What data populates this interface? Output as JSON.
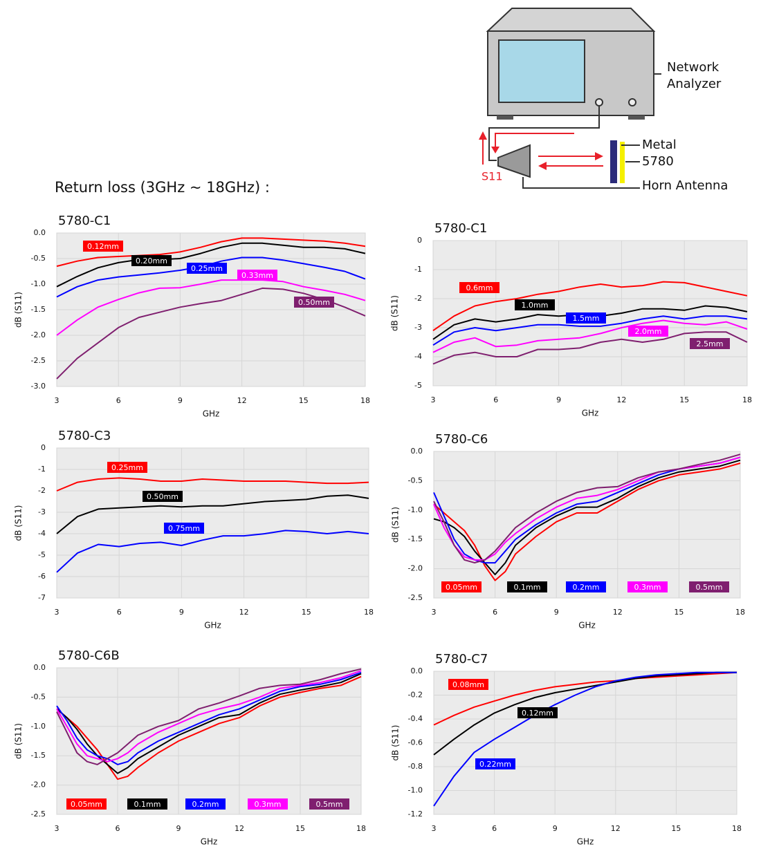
{
  "heading": "Return loss (3GHz ~ 18GHz) :",
  "diagram": {
    "analyzer": [
      "Network",
      "Analyzer"
    ],
    "metal": "Metal",
    "sample": "5780",
    "antenna": "Horn Antenna",
    "signal": "S11"
  },
  "chart_data": [
    {
      "type": "line",
      "title": "5780-C1",
      "xlabel": "GHz",
      "ylabel": "dB (S11)",
      "x": [
        3,
        4,
        5,
        6,
        7,
        8,
        9,
        10,
        11,
        12,
        13,
        14,
        15,
        16,
        17,
        18
      ],
      "xlim": [
        3,
        18
      ],
      "xticks": [
        3,
        6,
        9,
        12,
        15,
        18
      ],
      "ylim": [
        -3,
        0
      ],
      "yticks": [
        {
          "value": 0,
          "label": "0.0"
        },
        -0.5,
        {
          "value": -1,
          "label": "-1.0"
        },
        -1.5,
        {
          "value": -2,
          "label": "-2.0"
        },
        -2.5,
        {
          "value": -3,
          "label": "-3.0"
        }
      ],
      "grid": true,
      "series": [
        {
          "name": "0.12mm",
          "color": "#ff0000",
          "values": [
            -0.65,
            -0.55,
            -0.48,
            -0.46,
            -0.44,
            -0.42,
            -0.37,
            -0.28,
            -0.17,
            -0.1,
            -0.1,
            -0.12,
            -0.14,
            -0.16,
            -0.2,
            -0.26
          ]
        },
        {
          "name": "0.20mm",
          "color": "#000000",
          "values": [
            -1.05,
            -0.85,
            -0.68,
            -0.58,
            -0.52,
            -0.52,
            -0.5,
            -0.4,
            -0.28,
            -0.2,
            -0.2,
            -0.24,
            -0.28,
            -0.28,
            -0.31,
            -0.4
          ]
        },
        {
          "name": "0.25mm",
          "color": "#0000ff",
          "values": [
            -1.25,
            -1.05,
            -0.92,
            -0.86,
            -0.82,
            -0.78,
            -0.73,
            -0.66,
            -0.55,
            -0.48,
            -0.48,
            -0.53,
            -0.6,
            -0.67,
            -0.75,
            -0.9
          ]
        },
        {
          "name": "0.33mm",
          "color": "#ff00ff",
          "values": [
            -2.0,
            -1.7,
            -1.45,
            -1.3,
            -1.17,
            -1.08,
            -1.07,
            -1.0,
            -0.92,
            -0.92,
            -0.92,
            -0.95,
            -1.05,
            -1.12,
            -1.2,
            -1.32
          ]
        },
        {
          "name": "0.50mm",
          "color": "#7f1f6f",
          "values": [
            -2.85,
            -2.45,
            -2.15,
            -1.85,
            -1.65,
            -1.55,
            -1.45,
            -1.38,
            -1.32,
            -1.2,
            -1.08,
            -1.1,
            -1.18,
            -1.3,
            -1.45,
            -1.62
          ]
        }
      ]
    },
    {
      "type": "line",
      "title": "5780-C1",
      "xlabel": "GHz",
      "ylabel": "dB (S11)",
      "x": [
        3,
        4,
        5,
        6,
        7,
        8,
        9,
        10,
        11,
        12,
        13,
        14,
        15,
        16,
        17,
        18
      ],
      "xlim": [
        3,
        18
      ],
      "xticks": [
        3,
        6,
        9,
        12,
        15,
        18
      ],
      "ylim": [
        -5,
        0
      ],
      "yticks": [
        0,
        -1,
        -2,
        -3,
        -4,
        -5
      ],
      "grid": true,
      "series": [
        {
          "name": "0.6mm",
          "color": "#ff0000",
          "values": [
            -3.1,
            -2.6,
            -2.25,
            -2.1,
            -2.0,
            -1.85,
            -1.75,
            -1.6,
            -1.5,
            -1.6,
            -1.55,
            -1.42,
            -1.45,
            -1.6,
            -1.75,
            -1.9
          ]
        },
        {
          "name": "1.0mm",
          "color": "#000000",
          "values": [
            -3.4,
            -2.9,
            -2.7,
            -2.8,
            -2.7,
            -2.55,
            -2.6,
            -2.55,
            -2.6,
            -2.5,
            -2.35,
            -2.35,
            -2.4,
            -2.25,
            -2.3,
            -2.45
          ]
        },
        {
          "name": "1.5mm",
          "color": "#0000ff",
          "values": [
            -3.6,
            -3.15,
            -3.0,
            -3.1,
            -3.0,
            -2.9,
            -2.9,
            -2.95,
            -2.95,
            -2.85,
            -2.7,
            -2.6,
            -2.7,
            -2.6,
            -2.6,
            -2.7
          ]
        },
        {
          "name": "2.0mm",
          "color": "#ff00ff",
          "values": [
            -3.85,
            -3.5,
            -3.35,
            -3.65,
            -3.6,
            -3.45,
            -3.4,
            -3.35,
            -3.2,
            -3.0,
            -2.85,
            -2.75,
            -2.85,
            -2.9,
            -2.8,
            -3.05
          ]
        },
        {
          "name": "2.5mm",
          "color": "#7f1f6f",
          "values": [
            -4.25,
            -3.95,
            -3.85,
            -4.0,
            -4.0,
            -3.75,
            -3.75,
            -3.7,
            -3.5,
            -3.4,
            -3.5,
            -3.4,
            -3.2,
            -3.15,
            -3.15,
            -3.5
          ]
        }
      ]
    },
    {
      "type": "line",
      "title": "5780-C3",
      "xlabel": "GHz",
      "ylabel": "dB (S11)",
      "x": [
        3,
        4,
        5,
        6,
        7,
        8,
        9,
        10,
        11,
        12,
        13,
        14,
        15,
        16,
        17,
        18
      ],
      "xlim": [
        3,
        18
      ],
      "xticks": [
        3,
        6,
        9,
        12,
        15,
        18
      ],
      "ylim": [
        -7,
        0
      ],
      "yticks": [
        0,
        -1,
        -2,
        -3,
        -4,
        -5,
        -6,
        -7
      ],
      "grid": true,
      "series": [
        {
          "name": "0.25mm",
          "color": "#ff0000",
          "values": [
            -2.0,
            -1.6,
            -1.45,
            -1.4,
            -1.45,
            -1.55,
            -1.55,
            -1.45,
            -1.5,
            -1.55,
            -1.55,
            -1.55,
            -1.6,
            -1.65,
            -1.65,
            -1.6
          ]
        },
        {
          "name": "0.50mm",
          "color": "#000000",
          "values": [
            -4.0,
            -3.2,
            -2.85,
            -2.8,
            -2.75,
            -2.7,
            -2.75,
            -2.7,
            -2.7,
            -2.6,
            -2.5,
            -2.45,
            -2.4,
            -2.25,
            -2.2,
            -2.35
          ]
        },
        {
          "name": "0.75mm",
          "color": "#0000ff",
          "values": [
            -5.8,
            -4.9,
            -4.5,
            -4.6,
            -4.45,
            -4.4,
            -4.55,
            -4.3,
            -4.1,
            -4.1,
            -4.0,
            -3.85,
            -3.9,
            -4.0,
            -3.9,
            -4.0
          ]
        }
      ]
    },
    {
      "type": "line",
      "title": "5780-C6",
      "xlabel": "GHz",
      "ylabel": "dB (S11)",
      "x": [
        3,
        3.5,
        4,
        4.5,
        5,
        5.5,
        6,
        6.5,
        7,
        8,
        9,
        10,
        11,
        12,
        13,
        14,
        15,
        16,
        17,
        18
      ],
      "xlim": [
        3,
        18
      ],
      "xticks": [
        3,
        6,
        9,
        12,
        15,
        18
      ],
      "ylim": [
        -2.5,
        0
      ],
      "yticks": [
        {
          "value": 0,
          "label": "0.0"
        },
        -0.5,
        {
          "value": -1,
          "label": "-1.0"
        },
        -1.5,
        {
          "value": -2,
          "label": "-2.0"
        },
        -2.5
      ],
      "grid": true,
      "series": [
        {
          "name": "0.05mm",
          "color": "#ff0000",
          "values": [
            -0.9,
            -1.05,
            -1.2,
            -1.35,
            -1.6,
            -1.95,
            -2.2,
            -2.05,
            -1.75,
            -1.45,
            -1.2,
            -1.05,
            -1.05,
            -0.85,
            -0.65,
            -0.5,
            -0.4,
            -0.35,
            -0.3,
            -0.2
          ]
        },
        {
          "name": "0.1mm",
          "color": "#000000",
          "values": [
            -1.15,
            -1.2,
            -1.3,
            -1.45,
            -1.7,
            -1.9,
            -2.1,
            -1.9,
            -1.6,
            -1.3,
            -1.1,
            -0.95,
            -0.95,
            -0.8,
            -0.6,
            -0.45,
            -0.35,
            -0.3,
            -0.25,
            -0.15
          ]
        },
        {
          "name": "0.2mm",
          "color": "#0000ff",
          "values": [
            -0.7,
            -1.1,
            -1.5,
            -1.75,
            -1.85,
            -1.9,
            -1.9,
            -1.7,
            -1.5,
            -1.25,
            -1.05,
            -0.9,
            -0.85,
            -0.7,
            -0.55,
            -0.4,
            -0.3,
            -0.25,
            -0.2,
            -0.1
          ]
        },
        {
          "name": "0.3mm",
          "color": "#ff00ff",
          "values": [
            -0.9,
            -1.3,
            -1.6,
            -1.8,
            -1.85,
            -1.85,
            -1.75,
            -1.55,
            -1.4,
            -1.15,
            -0.95,
            -0.8,
            -0.75,
            -0.65,
            -0.5,
            -0.35,
            -0.3,
            -0.25,
            -0.2,
            -0.1
          ]
        },
        {
          "name": "0.5mm",
          "color": "#7f1f6f",
          "values": [
            -0.85,
            -1.2,
            -1.6,
            -1.85,
            -1.9,
            -1.85,
            -1.7,
            -1.5,
            -1.3,
            -1.05,
            -0.85,
            -0.7,
            -0.62,
            -0.6,
            -0.45,
            -0.35,
            -0.3,
            -0.22,
            -0.15,
            -0.05
          ]
        }
      ]
    },
    {
      "type": "line",
      "title": "5780-C6B",
      "xlabel": "GHz",
      "ylabel": "dB (S11)",
      "x": [
        3,
        3.5,
        4,
        4.5,
        5,
        5.5,
        6,
        6.5,
        7,
        8,
        9,
        10,
        11,
        12,
        13,
        14,
        15,
        16,
        17,
        18
      ],
      "xlim": [
        3,
        18
      ],
      "xticks": [
        3,
        6,
        9,
        12,
        15,
        18
      ],
      "ylim": [
        -2.5,
        0
      ],
      "yticks": [
        {
          "value": 0,
          "label": "0.0"
        },
        -0.5,
        {
          "value": -1,
          "label": "-1.0"
        },
        -1.5,
        {
          "value": -2,
          "label": "-2.0"
        },
        -2.5
      ],
      "grid": true,
      "series": [
        {
          "name": "0.05mm",
          "color": "#ff0000",
          "values": [
            -0.7,
            -0.85,
            -1.0,
            -1.2,
            -1.4,
            -1.65,
            -1.9,
            -1.85,
            -1.7,
            -1.45,
            -1.25,
            -1.1,
            -0.95,
            -0.85,
            -0.65,
            -0.5,
            -0.42,
            -0.35,
            -0.3,
            -0.15
          ]
        },
        {
          "name": "0.1mm",
          "color": "#000000",
          "values": [
            -0.7,
            -0.85,
            -1.05,
            -1.3,
            -1.5,
            -1.65,
            -1.8,
            -1.7,
            -1.55,
            -1.35,
            -1.15,
            -1.0,
            -0.85,
            -0.8,
            -0.6,
            -0.45,
            -0.38,
            -0.32,
            -0.25,
            -0.1
          ]
        },
        {
          "name": "0.2mm",
          "color": "#0000ff",
          "values": [
            -0.65,
            -0.9,
            -1.2,
            -1.4,
            -1.5,
            -1.55,
            -1.65,
            -1.6,
            -1.45,
            -1.25,
            -1.1,
            -0.95,
            -0.8,
            -0.7,
            -0.55,
            -0.4,
            -0.32,
            -0.28,
            -0.2,
            -0.08
          ]
        },
        {
          "name": "0.3mm",
          "color": "#ff00ff",
          "values": [
            -0.7,
            -1.0,
            -1.3,
            -1.5,
            -1.55,
            -1.6,
            -1.55,
            -1.45,
            -1.3,
            -1.1,
            -0.95,
            -0.8,
            -0.7,
            -0.62,
            -0.5,
            -0.35,
            -0.3,
            -0.25,
            -0.17,
            -0.05
          ]
        },
        {
          "name": "0.5mm",
          "color": "#7f1f6f",
          "values": [
            -0.75,
            -1.1,
            -1.45,
            -1.6,
            -1.65,
            -1.55,
            -1.45,
            -1.3,
            -1.15,
            -1.0,
            -0.9,
            -0.7,
            -0.6,
            -0.48,
            -0.35,
            -0.3,
            -0.28,
            -0.2,
            -0.1,
            -0.02
          ]
        }
      ]
    },
    {
      "type": "line",
      "title": "5780-C7",
      "xlabel": "GHz",
      "ylabel": "dB (S11)",
      "x": [
        3,
        4,
        5,
        6,
        7,
        8,
        9,
        10,
        11,
        12,
        13,
        14,
        15,
        16,
        17,
        18
      ],
      "xlim": [
        3,
        18
      ],
      "xticks": [
        3,
        6,
        9,
        12,
        15,
        18
      ],
      "ylim": [
        -1.2,
        0
      ],
      "yticks": [
        {
          "value": 0,
          "label": "0.0"
        },
        -0.2,
        -0.4,
        -0.6,
        -0.8,
        {
          "value": -1,
          "label": "-1.0"
        },
        -1.2
      ],
      "grid": true,
      "series": [
        {
          "name": "0.08mm",
          "color": "#ff0000",
          "values": [
            -0.45,
            -0.37,
            -0.3,
            -0.25,
            -0.2,
            -0.16,
            -0.13,
            -0.11,
            -0.09,
            -0.08,
            -0.06,
            -0.05,
            -0.04,
            -0.03,
            -0.02,
            -0.01
          ]
        },
        {
          "name": "0.12mm",
          "color": "#000000",
          "values": [
            -0.7,
            -0.57,
            -0.45,
            -0.35,
            -0.28,
            -0.22,
            -0.18,
            -0.15,
            -0.12,
            -0.09,
            -0.06,
            -0.04,
            -0.03,
            -0.02,
            -0.01,
            -0.01
          ]
        },
        {
          "name": "0.22mm",
          "color": "#0000ff",
          "values": [
            -1.13,
            -0.88,
            -0.68,
            -0.57,
            -0.47,
            -0.37,
            -0.28,
            -0.2,
            -0.13,
            -0.08,
            -0.05,
            -0.03,
            -0.02,
            -0.01,
            -0.01,
            -0.01
          ]
        }
      ]
    }
  ]
}
